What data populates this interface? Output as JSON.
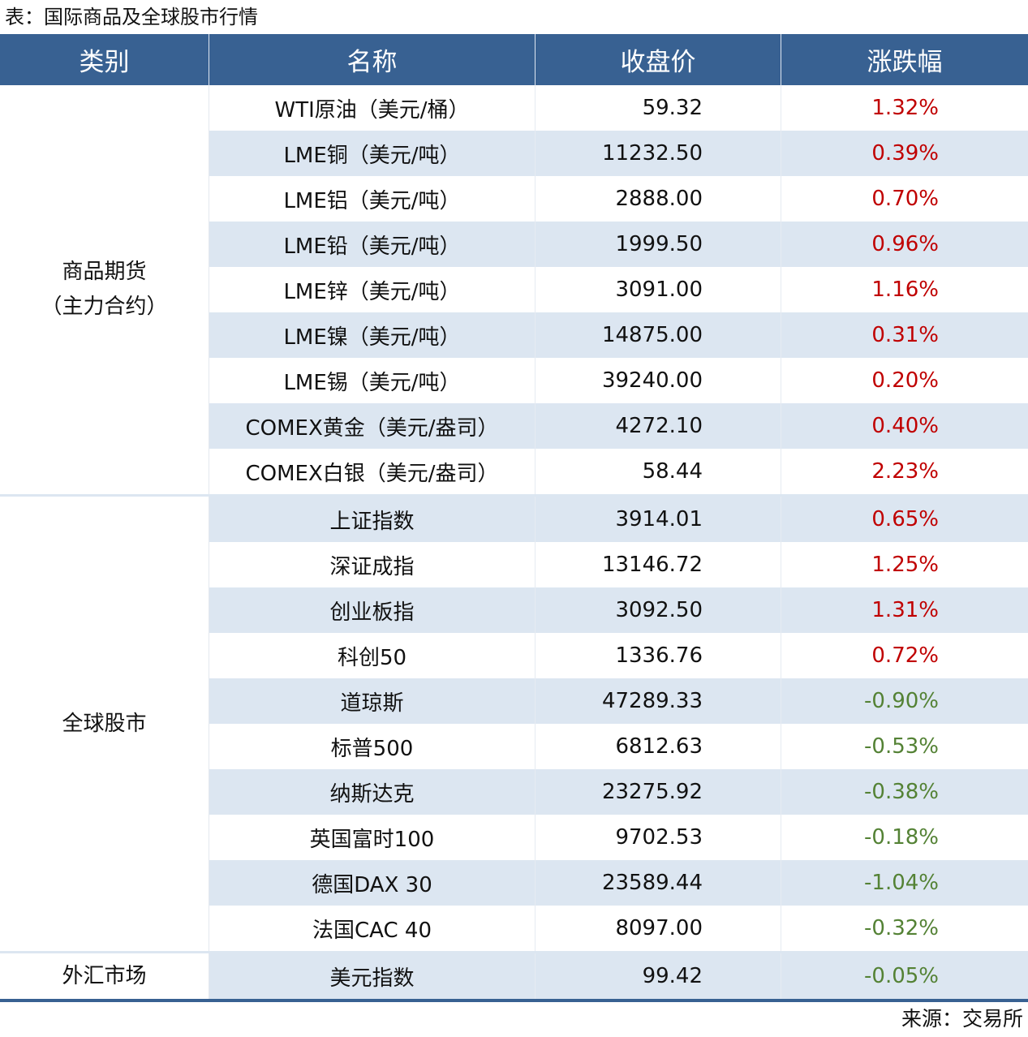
{
  "title": "表：国际商品及全球股市行情",
  "headers": [
    "类别",
    "名称",
    "收盘价",
    "涨跌幅"
  ],
  "colors": {
    "header_bg": "#386192",
    "stripe": "#dce6f1",
    "up": "#c00000",
    "down": "#548235"
  },
  "sections": [
    {
      "category": "商品期货\n（主力合约）",
      "rows": [
        {
          "name": "WTI原油（美元/桶）",
          "price": "59.32",
          "change": "1.32%"
        },
        {
          "name": "LME铜（美元/吨）",
          "price": "11232.50",
          "change": "0.39%"
        },
        {
          "name": "LME铝（美元/吨）",
          "price": "2888.00",
          "change": "0.70%"
        },
        {
          "name": "LME铅（美元/吨）",
          "price": "1999.50",
          "change": "0.96%"
        },
        {
          "name": "LME锌（美元/吨）",
          "price": "3091.00",
          "change": "1.16%"
        },
        {
          "name": "LME镍（美元/吨）",
          "price": "14875.00",
          "change": "0.31%"
        },
        {
          "name": "LME锡（美元/吨）",
          "price": "39240.00",
          "change": "0.20%"
        },
        {
          "name": "COMEX黄金（美元/盎司）",
          "price": "4272.10",
          "change": "0.40%"
        },
        {
          "name": "COMEX白银（美元/盎司）",
          "price": "58.44",
          "change": "2.23%"
        }
      ]
    },
    {
      "category": "全球股市",
      "rows": [
        {
          "name": "上证指数",
          "price": "3914.01",
          "change": "0.65%"
        },
        {
          "name": "深证成指",
          "price": "13146.72",
          "change": "1.25%"
        },
        {
          "name": "创业板指",
          "price": "3092.50",
          "change": "1.31%"
        },
        {
          "name": "科创50",
          "price": "1336.76",
          "change": "0.72%"
        },
        {
          "name": "道琼斯",
          "price": "47289.33",
          "change": "-0.90%"
        },
        {
          "name": "标普500",
          "price": "6812.63",
          "change": "-0.53%"
        },
        {
          "name": "纳斯达克",
          "price": "23275.92",
          "change": "-0.38%"
        },
        {
          "name": "英国富时100",
          "price": "9702.53",
          "change": "-0.18%"
        },
        {
          "name": "德国DAX 30",
          "price": "23589.44",
          "change": "-1.04%"
        },
        {
          "name": "法国CAC 40",
          "price": "8097.00",
          "change": "-0.32%"
        }
      ]
    },
    {
      "category": "外汇市场",
      "rows": [
        {
          "name": "美元指数",
          "price": "99.42",
          "change": "-0.05%"
        }
      ]
    }
  ],
  "source": "来源：交易所"
}
